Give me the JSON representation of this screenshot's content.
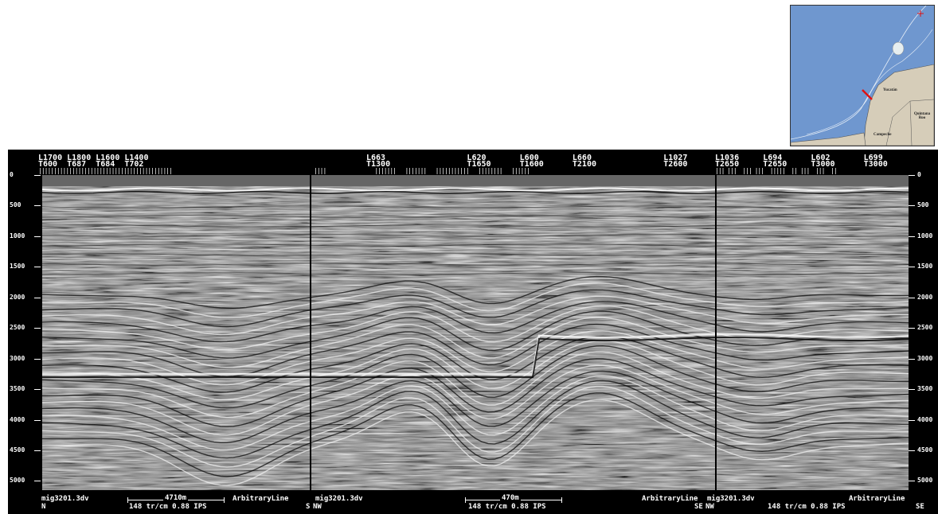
{
  "map": {
    "labels": {
      "yucatan": "Yucatán",
      "quintana_roo": "Quintana Roo",
      "campeche": "Campeche"
    },
    "colors": {
      "sea": "#6f97cf",
      "land": "#d6cdb9",
      "track": "#e01010"
    }
  },
  "section": {
    "panels": [
      {
        "header_top": "L1700 L1800 L1600 L1400",
        "header_bot": "T600  T687  T684  T702",
        "ticks": "||||||||||||||||||||||||||||||||||||||||||||",
        "footer_left": "mig3201.3dv",
        "footer_dir_left": "N",
        "footer_center": "148 tr/cm 0.88 IPS",
        "footer_right": "ArbitraryLine",
        "footer_dir_right": "S",
        "scale": "4710m"
      },
      {
        "header_top": "L663                 L620       L600       L660               L1027",
        "header_bot": "T1300                T1650      T1600      T2100              T2600",
        "ticks": "||||                |||||||   |||||||   |||||||||||   ||||||||   ||||||",
        "footer_left": "mig3201.3dv",
        "footer_dir_left": "NW",
        "footer_center": "148 tr/cm 0.88 IPS",
        "footer_right": "ArbitraryLine",
        "footer_dir_right": "SE",
        "scale": "470m"
      },
      {
        "header_top": "L1036     L694      L602       L699",
        "header_bot": "T2650     T2650     T3000      T3000",
        "ticks": "||| |||  ||| |||  |||||  || |||  |||  ||",
        "footer_left": "mig3201.3dv",
        "footer_dir_left": "NW",
        "footer_center": "148 tr/cm 0.88 IPS",
        "footer_right": "ArbitraryLine",
        "footer_dir_right": "SE"
      }
    ],
    "time_axis": [
      "0",
      "500",
      "1000",
      "1500",
      "2000",
      "2500",
      "3000",
      "3500",
      "4000",
      "4500",
      "5000"
    ]
  }
}
